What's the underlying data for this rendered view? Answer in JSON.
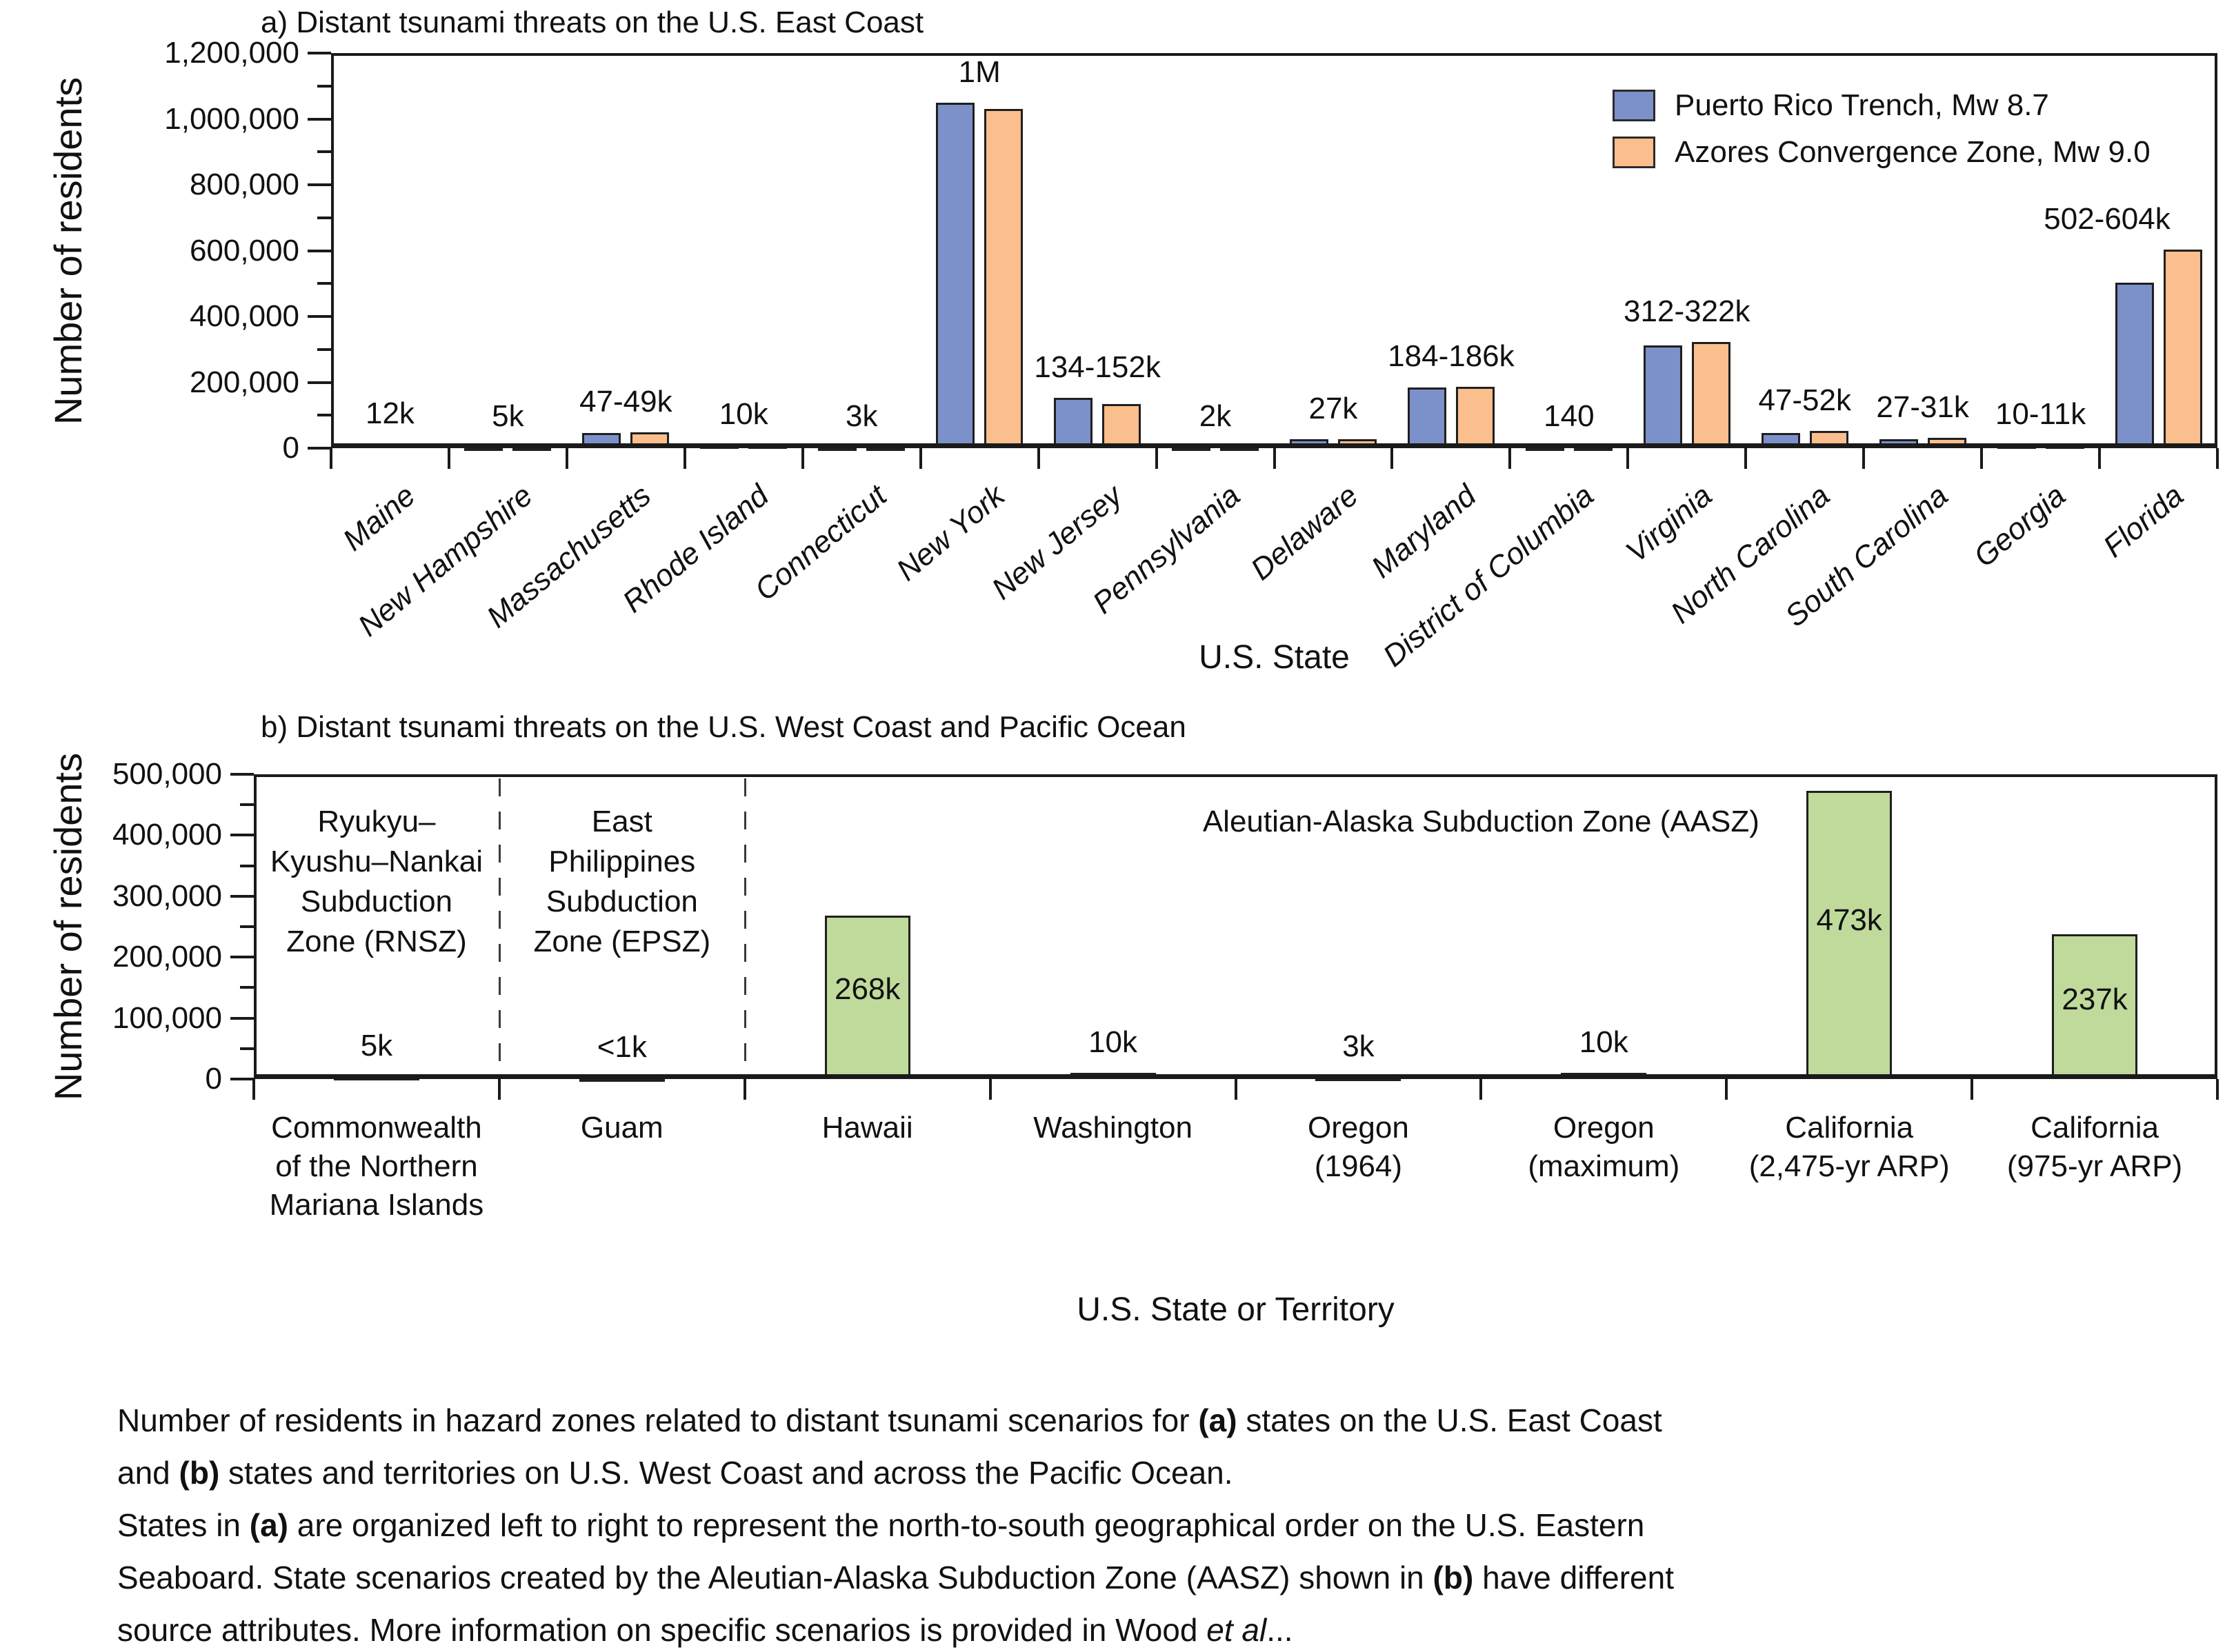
{
  "chart_data": [
    {
      "type": "bar",
      "panel": "a",
      "title": "a) Distant tsunami threats on the U.S. East Coast",
      "xlabel": "U.S. State",
      "ylabel": "Number of residents",
      "ylim": [
        0,
        1200000
      ],
      "ytick_step": 200000,
      "ytick_minor_step": 100000,
      "ytick_labels": [
        "0",
        "200,000",
        "400,000",
        "600,000",
        "800,000",
        "1,000,000",
        "1,200,000"
      ],
      "grid": false,
      "legend_position": "top-right-inside",
      "categories": [
        "Maine",
        "New Hampshire",
        "Massachusetts",
        "Rhode Island",
        "Connecticut",
        "New York",
        "New Jersey",
        "Pennsylvania",
        "Delaware",
        "Maryland",
        "District of Columbia",
        "Virginia",
        "North Carolina",
        "South Carolina",
        "Georgia",
        "Florida"
      ],
      "series": [
        {
          "name": "Puerto Rico Trench, Mw 8.7",
          "color": "#7C90C9",
          "values": [
            12000,
            5000,
            47000,
            10000,
            3000,
            1050000,
            152000,
            2000,
            27000,
            184000,
            140,
            312000,
            47000,
            27000,
            10000,
            502000
          ]
        },
        {
          "name": "Azores Convergence Zone, Mw 9.0",
          "color": "#FBBE8D",
          "values": [
            12000,
            5000,
            49000,
            10000,
            3000,
            1030000,
            134000,
            2000,
            27000,
            186000,
            140,
            322000,
            52000,
            31000,
            11000,
            604000
          ]
        }
      ],
      "bar_labels": [
        "12k",
        "5k",
        "47-49k",
        "10k",
        "3k",
        "1M",
        "134-152k",
        "2k",
        "27k",
        "184-186k",
        "140",
        "312-322k",
        "47-52k",
        "27-31k",
        "10-11k",
        "502-604k"
      ]
    },
    {
      "type": "bar",
      "panel": "b",
      "title": "b) Distant tsunami threats on the U.S. West Coast and Pacific Ocean",
      "xlabel": "U.S. State or Territory",
      "ylabel": "Number of residents",
      "ylim": [
        0,
        500000
      ],
      "ytick_step": 100000,
      "ytick_minor_step": 50000,
      "ytick_labels": [
        "0",
        "100,000",
        "200,000",
        "300,000",
        "400,000",
        "500,000"
      ],
      "grid": false,
      "bar_color": "#BFDA9B",
      "categories": [
        [
          "Commonwealth",
          "of the Northern",
          "Mariana Islands"
        ],
        [
          "Guam"
        ],
        [
          "Hawaii"
        ],
        [
          "Washington"
        ],
        [
          "Oregon",
          "(1964)"
        ],
        [
          "Oregon",
          "(maximum)"
        ],
        [
          "California",
          "(2,475-yr ARP)"
        ],
        [
          "California",
          "(975-yr ARP)"
        ]
      ],
      "values": [
        5000,
        500,
        268000,
        10000,
        3000,
        10000,
        473000,
        237000
      ],
      "bar_labels": [
        {
          "text": "5k",
          "pos": "above"
        },
        {
          "text": "<1k",
          "pos": "above"
        },
        {
          "text": "268k",
          "pos": "inside"
        },
        {
          "text": "10k",
          "pos": "above"
        },
        {
          "text": "3k",
          "pos": "above"
        },
        {
          "text": "10k",
          "pos": "above"
        },
        {
          "text": "473k",
          "pos": "inside"
        },
        {
          "text": "237k",
          "pos": "inside"
        }
      ],
      "zones": [
        {
          "label": [
            "Ryukyu–",
            "Kyushu–Nankai",
            "Subduction",
            "Zone (RNSZ)"
          ],
          "start": 0,
          "end": 1
        },
        {
          "label": [
            "East",
            "Philippines",
            "Subduction",
            "Zone (EPSZ)"
          ],
          "start": 1,
          "end": 2
        },
        {
          "label": [
            "Aleutian-Alaska Subduction Zone (AASZ)"
          ],
          "start": 2,
          "end": 8
        }
      ]
    }
  ],
  "colors": {
    "bar_border": "#1f1f1f",
    "axis": "#1a1a1a",
    "series_blue": "#7C90C9",
    "series_orange": "#FBBE8D",
    "series_green": "#BFDA9B"
  },
  "caption": {
    "lines": [
      [
        {
          "t": "Number of residents in hazard zones related to distant tsunami scenarios for "
        },
        {
          "t": "(a)",
          "b": true
        },
        {
          "t": " states on the U.S. East Coast"
        }
      ],
      [
        {
          "t": "and "
        },
        {
          "t": "(b)",
          "b": true
        },
        {
          "t": " states and territories on U.S. West Coast and across the Pacific Ocean."
        }
      ],
      [
        {
          "t": "States in "
        },
        {
          "t": "(a)",
          "b": true
        },
        {
          "t": " are organized left to right to represent the north-to-south geographical order on the U.S. Eastern"
        }
      ],
      [
        {
          "t": "Seaboard. State scenarios created by the Aleutian-Alaska Subduction Zone (AASZ) shown in "
        },
        {
          "t": "(b)",
          "b": true
        },
        {
          "t": " have different"
        }
      ],
      [
        {
          "t": "source attributes. More information on specific scenarios is provided in Wood "
        },
        {
          "t": "et al",
          "i": true
        },
        {
          "t": "..."
        }
      ]
    ]
  }
}
